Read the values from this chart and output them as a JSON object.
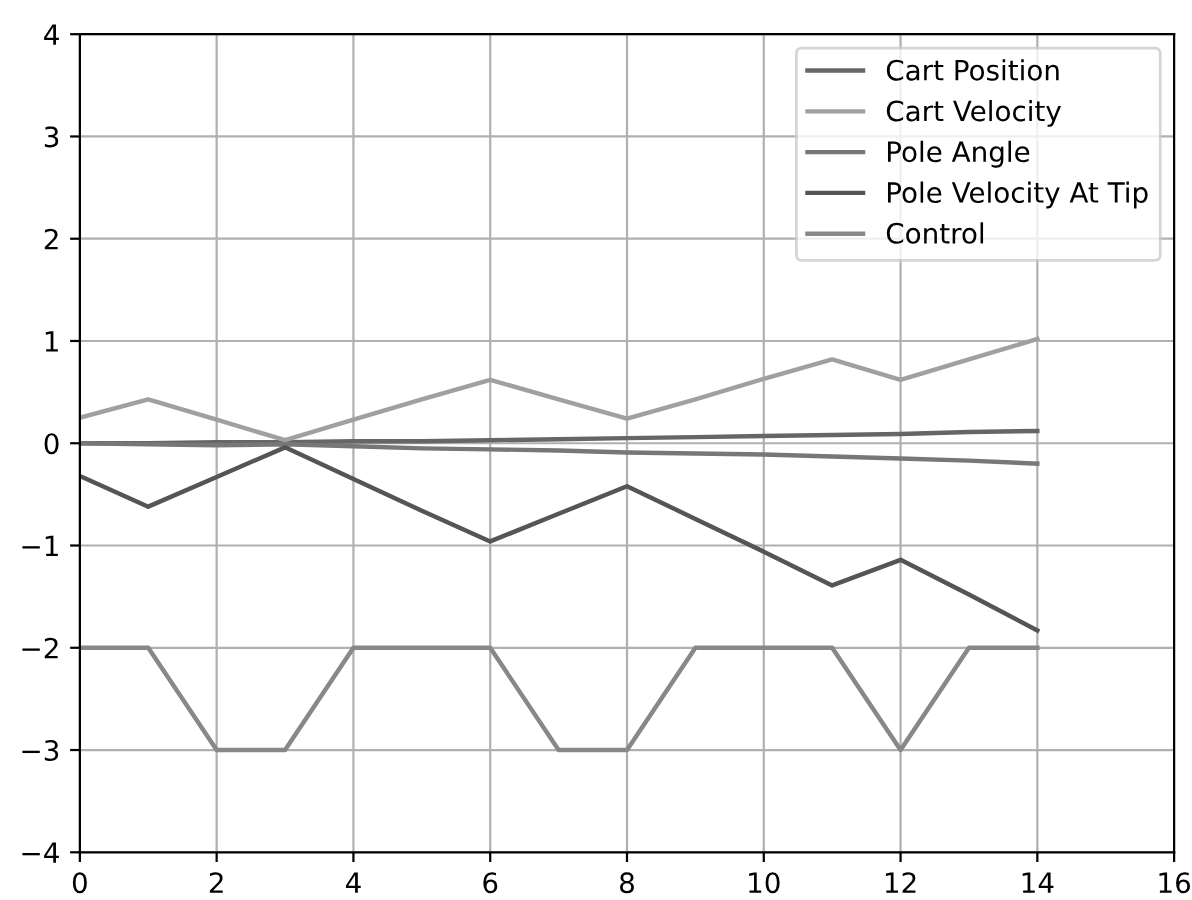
{
  "chart_data": {
    "type": "line",
    "x": [
      0,
      1,
      2,
      3,
      4,
      5,
      6,
      7,
      8,
      9,
      10,
      11,
      12,
      13,
      14
    ],
    "series": [
      {
        "name": "Cart Position",
        "color": "#666666",
        "values": [
          0,
          0.0,
          0.01,
          0.01,
          0.02,
          0.02,
          0.03,
          0.04,
          0.05,
          0.06,
          0.07,
          0.08,
          0.09,
          0.11,
          0.12
        ]
      },
      {
        "name": "Cart Velocity",
        "color": "#a0a0a0",
        "values": [
          0.25,
          0.43,
          0.23,
          0.03,
          0.23,
          0.43,
          0.62,
          0.43,
          0.24,
          0.43,
          0.63,
          0.82,
          0.62,
          0.82,
          1.02
        ]
      },
      {
        "name": "Pole Angle",
        "color": "#777777",
        "values": [
          0,
          -0.01,
          -0.02,
          -0.01,
          -0.03,
          -0.05,
          -0.06,
          -0.07,
          -0.09,
          -0.1,
          -0.11,
          -0.13,
          -0.15,
          -0.17,
          -0.2
        ]
      },
      {
        "name": "Pole Velocity At Tip",
        "color": "#555555",
        "values": [
          -0.32,
          -0.62,
          -0.33,
          -0.04,
          -0.35,
          -0.66,
          -0.96,
          -0.69,
          -0.42,
          -0.74,
          -1.06,
          -1.39,
          -1.14,
          -1.48,
          -1.83
        ]
      },
      {
        "name": "Control",
        "color": "#888888",
        "values": [
          -2,
          -2,
          -3,
          -3,
          -2,
          -2,
          -2,
          -3,
          -3,
          -2,
          -2,
          -2,
          -3,
          -2,
          -2
        ]
      }
    ],
    "xlim": [
      0,
      16
    ],
    "xticks": [
      0,
      2,
      4,
      6,
      8,
      10,
      12,
      14,
      16
    ],
    "ylim": [
      -4,
      4
    ],
    "yticks": [
      -4,
      -3,
      -2,
      -1,
      0,
      1,
      2,
      3,
      4
    ],
    "grid": true,
    "legend": "top right"
  }
}
